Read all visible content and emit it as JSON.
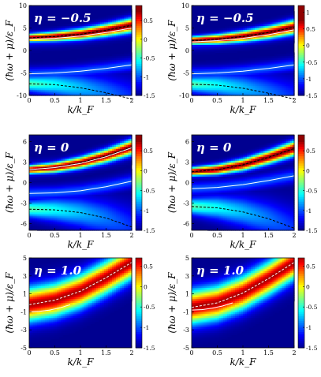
{
  "colorscale": {
    "stops": [
      {
        "v": -1.5,
        "color": "#000090"
      },
      {
        "v": -1.2,
        "color": "#0000ff"
      },
      {
        "v": -0.9,
        "color": "#0080ff"
      },
      {
        "v": -0.6,
        "color": "#00ffff"
      },
      {
        "v": -0.3,
        "color": "#80ff80"
      },
      {
        "v": 0.0,
        "color": "#ffff00"
      },
      {
        "v": 0.3,
        "color": "#ff8000"
      },
      {
        "v": 0.55,
        "color": "#ff0000"
      },
      {
        "v": 0.75,
        "color": "#900000"
      }
    ]
  },
  "chart_data": [
    {
      "type": "heatmap",
      "panel": "row1-left",
      "annotation": "η = −0.5",
      "xlabel": "k/k_F",
      "ylabel": "(ħω + μ)/ε_F",
      "xlim": [
        0,
        2
      ],
      "ylim": [
        -10,
        10
      ],
      "xticks": [
        "0",
        "0.5",
        "1",
        "1.5",
        "2"
      ],
      "yticks": [
        "-10",
        "-5",
        "0",
        "5",
        "10"
      ],
      "colorbar": {
        "range": [
          -1.5,
          0.9
        ],
        "ticks": [
          "0.5",
          "0",
          "-0.5",
          "-1",
          "-1.5"
        ]
      },
      "curves": [
        {
          "style": "dashed-black",
          "x": [
            0,
            0.5,
            1,
            1.5,
            2
          ],
          "y": [
            2.8,
            3.1,
            3.6,
            4.5,
            5.6
          ]
        },
        {
          "style": "solid-white",
          "x": [
            0,
            0.5,
            1,
            1.5,
            2
          ],
          "y": [
            2.5,
            2.7,
            3.2,
            4.0,
            5.0
          ]
        },
        {
          "style": "solid-white",
          "x": [
            0,
            0.5,
            1,
            1.5,
            2
          ],
          "y": [
            -5.2,
            -5.0,
            -4.6,
            -4.0,
            -3.2
          ]
        },
        {
          "style": "dashed-black",
          "x": [
            0,
            0.5,
            1,
            1.5,
            2
          ],
          "y": [
            -7.4,
            -7.6,
            -8.3,
            -9.4,
            -10.8
          ]
        }
      ]
    },
    {
      "type": "heatmap",
      "panel": "row1-right",
      "annotation": "η = −0.5",
      "xlabel": "k/k_F",
      "ylabel": "(ħω + μ)/ε_F",
      "xlim": [
        0,
        2
      ],
      "ylim": [
        -10,
        10
      ],
      "xticks": [
        "0",
        "0.5",
        "1",
        "1.5",
        "2"
      ],
      "yticks": [
        "-10",
        "-5",
        "0",
        "5",
        "10"
      ],
      "colorbar": {
        "range": [
          -1.5,
          1.2
        ],
        "ticks": [
          "1",
          "0.5",
          "0",
          "-0.5",
          "-1",
          "-1.5"
        ]
      },
      "curves": [
        {
          "style": "dashed-black",
          "x": [
            0,
            0.5,
            1,
            1.5,
            2
          ],
          "y": [
            2.2,
            2.5,
            3.1,
            4.0,
            5.2
          ]
        },
        {
          "style": "solid-white",
          "x": [
            0,
            0.5,
            1,
            1.5,
            2
          ],
          "y": [
            1.9,
            2.2,
            2.7,
            3.5,
            4.6
          ]
        },
        {
          "style": "solid-white",
          "x": [
            0,
            0.5,
            1,
            1.5,
            2
          ],
          "y": [
            -5.2,
            -5.0,
            -4.6,
            -4.0,
            -3.2
          ]
        },
        {
          "style": "dashed-black",
          "x": [
            0,
            0.5,
            1,
            1.5,
            2
          ],
          "y": [
            -7.5,
            -7.7,
            -8.4,
            -9.5,
            -10.8
          ]
        }
      ]
    },
    {
      "type": "heatmap",
      "panel": "row2-left",
      "annotation": "η = 0",
      "xlabel": "k/k_F",
      "ylabel": "(ħω + μ)/ε_F",
      "xlim": [
        0,
        2
      ],
      "ylim": [
        -7,
        7
      ],
      "xticks": [
        "0",
        "0.5",
        "1",
        "1.5",
        "2"
      ],
      "yticks": [
        "-6",
        "-3",
        "0",
        "3",
        "6"
      ],
      "colorbar": {
        "range": [
          -1.5,
          0.9
        ],
        "ticks": [
          "0.5",
          "0",
          "-0.5",
          "-1",
          "-1.5"
        ]
      },
      "curves": [
        {
          "style": "dashed-black",
          "x": [
            0,
            0.5,
            1,
            1.5,
            2
          ],
          "y": [
            1.9,
            2.2,
            2.9,
            3.9,
            5.2
          ]
        },
        {
          "style": "solid-white",
          "x": [
            0,
            0.5,
            1,
            1.5,
            2
          ],
          "y": [
            1.9,
            2.2,
            2.8,
            3.8,
            5.1
          ]
        },
        {
          "style": "solid-white",
          "x": [
            0,
            0.5,
            1,
            1.5,
            2
          ],
          "y": [
            -1.6,
            -1.5,
            -1.2,
            -0.6,
            0.2
          ]
        },
        {
          "style": "dashed-black",
          "x": [
            0,
            0.5,
            1,
            1.5,
            2
          ],
          "y": [
            -3.9,
            -4.0,
            -4.4,
            -5.2,
            -6.5
          ]
        }
      ]
    },
    {
      "type": "heatmap",
      "panel": "row2-right",
      "annotation": "η = 0",
      "xlabel": "k/k_F",
      "ylabel": "(ħω + μ)/ε_F",
      "xlim": [
        0,
        2
      ],
      "ylim": [
        -7,
        7
      ],
      "xticks": [
        "0",
        "0.5",
        "1",
        "1.5",
        "2"
      ],
      "yticks": [
        "-6",
        "-3",
        "0",
        "3",
        "6"
      ],
      "colorbar": {
        "range": [
          -1.5,
          0.9
        ],
        "ticks": [
          "0.5",
          "0",
          "-0.5",
          "-1",
          "-1.5"
        ]
      },
      "curves": [
        {
          "style": "dashed-black",
          "x": [
            0,
            0.5,
            1,
            1.5,
            2
          ],
          "y": [
            1.6,
            1.9,
            2.6,
            3.7,
            5.0
          ]
        },
        {
          "style": "solid-white",
          "x": [
            0,
            0.5,
            1,
            1.5,
            2
          ],
          "y": [
            -0.9,
            -0.7,
            -0.3,
            0.3,
            1.0
          ]
        },
        {
          "style": "dashed-black",
          "x": [
            0,
            0.5,
            1,
            1.5,
            2
          ],
          "y": [
            -3.5,
            -3.7,
            -4.3,
            -5.3,
            -6.7
          ]
        }
      ]
    },
    {
      "type": "heatmap",
      "panel": "row3-left",
      "annotation": "η = 1.0",
      "xlabel": "k/k_F",
      "ylabel": "(ħω + μ)/ε_F",
      "xlim": [
        0,
        2
      ],
      "ylim": [
        -5,
        5
      ],
      "xticks": [
        "0",
        "0.5",
        "1",
        "1.5",
        "2"
      ],
      "yticks": [
        "-5",
        "-3",
        "-1",
        "1",
        "3",
        "5"
      ],
      "colorbar": {
        "range": [
          -1.5,
          0.7
        ],
        "ticks": [
          "0.5",
          "0",
          "-0.5",
          "-1",
          "-1.5"
        ]
      },
      "curves": [
        {
          "style": "dashed-white",
          "x": [
            0,
            0.5,
            1,
            1.5,
            2
          ],
          "y": [
            -0.2,
            0.3,
            1.3,
            2.8,
            4.5
          ]
        },
        {
          "style": "solid-white",
          "x": [
            0,
            0.2,
            0.4,
            0.6,
            0.8
          ],
          "y": [
            -1.0,
            -0.95,
            -0.8,
            -0.55,
            -0.2
          ]
        }
      ]
    },
    {
      "type": "heatmap",
      "panel": "row3-right",
      "annotation": "η = 1.0",
      "xlabel": "k/k_F",
      "ylabel": "(ħω + μ)/ε_F",
      "xlim": [
        0,
        2
      ],
      "ylim": [
        -5,
        5
      ],
      "xticks": [
        "0",
        "0.5",
        "1",
        "1.5",
        "2"
      ],
      "yticks": [
        "-5",
        "-3",
        "-1",
        "1",
        "3",
        "5"
      ],
      "colorbar": {
        "range": [
          -1.5,
          0.7
        ],
        "ticks": [
          "0.5",
          "0",
          "-0.5",
          "-1",
          "-1.5"
        ]
      },
      "curves": [
        {
          "style": "dashed-white",
          "x": [
            0,
            0.5,
            1,
            1.5,
            2
          ],
          "y": [
            -0.5,
            0.0,
            1.1,
            2.7,
            4.5
          ]
        },
        {
          "style": "solid-white",
          "x": [
            0,
            0.2,
            0.4,
            0.6,
            0.8
          ],
          "y": [
            -0.8,
            -0.75,
            -0.6,
            -0.35,
            0.0
          ]
        }
      ]
    }
  ]
}
